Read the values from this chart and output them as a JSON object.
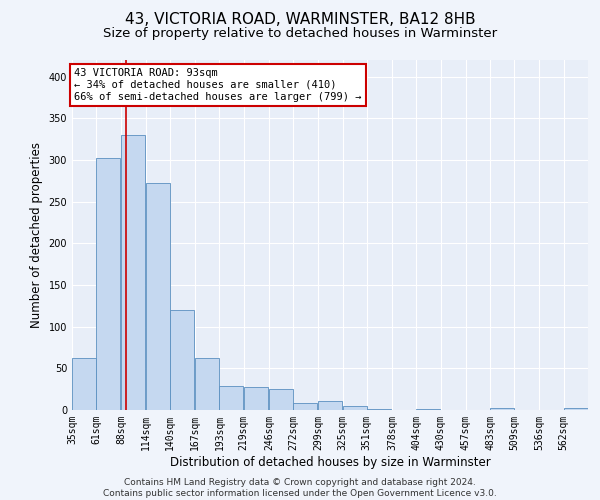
{
  "title": "43, VICTORIA ROAD, WARMINSTER, BA12 8HB",
  "subtitle": "Size of property relative to detached houses in Warminster",
  "xlabel": "Distribution of detached houses by size in Warminster",
  "ylabel": "Number of detached properties",
  "footer_line1": "Contains HM Land Registry data © Crown copyright and database right 2024.",
  "footer_line2": "Contains public sector information licensed under the Open Government Licence v3.0.",
  "bins": [
    35,
    61,
    88,
    114,
    140,
    167,
    193,
    219,
    246,
    272,
    299,
    325,
    351,
    378,
    404,
    430,
    457,
    483,
    509,
    536,
    562
  ],
  "bar_heights": [
    62,
    303,
    330,
    272,
    120,
    63,
    29,
    28,
    25,
    8,
    11,
    5,
    1,
    0,
    1,
    0,
    0,
    3,
    0,
    0,
    2
  ],
  "bar_color": "#c5d8f0",
  "bar_edge_color": "#5a8fc0",
  "vline_x": 93,
  "vline_color": "#cc0000",
  "annotation_line1": "43 VICTORIA ROAD: 93sqm",
  "annotation_line2": "← 34% of detached houses are smaller (410)",
  "annotation_line3": "66% of semi-detached houses are larger (799) →",
  "annotation_box_color": "#cc0000",
  "ylim": [
    0,
    420
  ],
  "yticks": [
    0,
    50,
    100,
    150,
    200,
    250,
    300,
    350,
    400
  ],
  "background_color": "#f0f4fb",
  "plot_bg_color": "#e8eef8",
  "grid_color": "#ffffff",
  "title_fontsize": 11,
  "subtitle_fontsize": 9.5,
  "axis_label_fontsize": 8.5,
  "tick_fontsize": 7,
  "footer_fontsize": 6.5
}
